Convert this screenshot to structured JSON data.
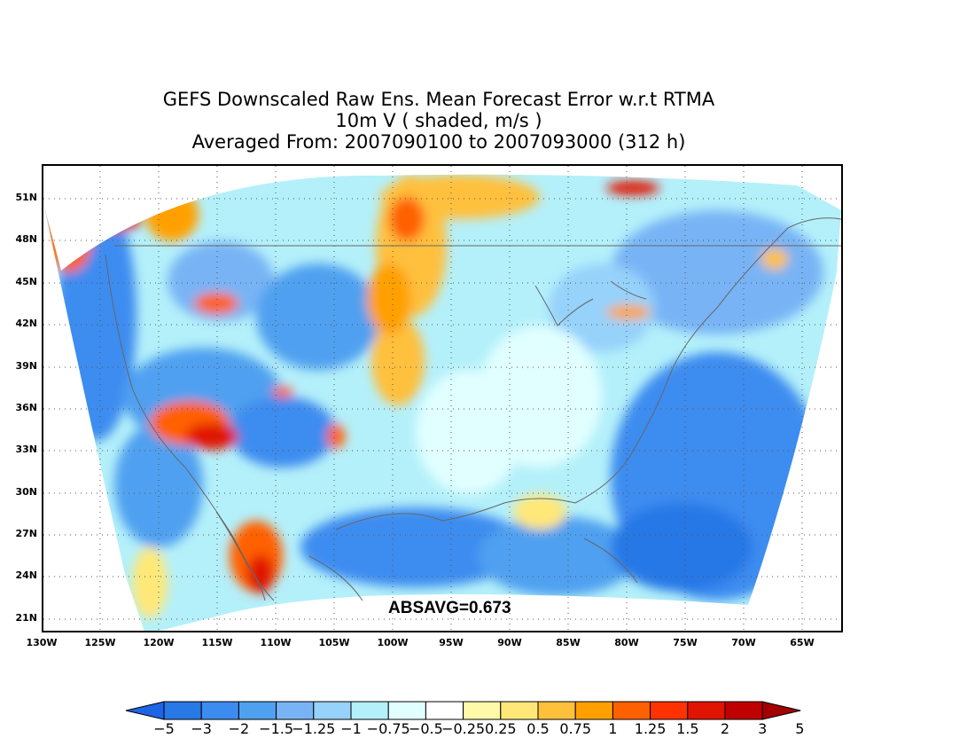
{
  "title": {
    "line1": "GEFS Downscaled Raw Ens. Mean Forecast Error w.r.t RTMA",
    "line2": "10m V ( shaded, m/s )",
    "line3": "Averaged From: 2007090100 to 2007093000 (312 h)"
  },
  "stat": "ABSAVG=0.673",
  "lat_labels": [
    "51N",
    "48N",
    "45N",
    "42N",
    "39N",
    "36N",
    "33N",
    "30N",
    "27N",
    "24N",
    "21N"
  ],
  "lon_labels": [
    "130W",
    "125W",
    "120W",
    "115W",
    "110W",
    "105W",
    "100W",
    "95W",
    "90W",
    "85W",
    "80W",
    "75W",
    "70W",
    "65W"
  ],
  "colorbar": {
    "labels": [
      "−5",
      "−3",
      "−2",
      "−1.5",
      "−1.25",
      "−1",
      "−0.75",
      "−0.5",
      "−0.25",
      "0.25",
      "0.5",
      "0.75",
      "1",
      "1.25",
      "1.5",
      "2",
      "3",
      "5"
    ],
    "colors": [
      "#1e64e6",
      "#2878e6",
      "#3c8cf0",
      "#50a0f0",
      "#78b4f5",
      "#96d2fa",
      "#b4f0fa",
      "#e1ffff",
      "#ffffff",
      "#fffaaa",
      "#ffe878",
      "#ffc03c",
      "#ffa000",
      "#ff6000",
      "#ff3200",
      "#e11400",
      "#c00000",
      "#a50000"
    ]
  },
  "chart_data": {
    "type": "heatmap",
    "variable": "10m V",
    "units": "m/s",
    "lat_range": [
      "21N",
      "51N"
    ],
    "lon_range": [
      "130W",
      "65W"
    ],
    "contour_levels": [
      -5,
      -3,
      -2,
      -1.5,
      -1.25,
      -1,
      -0.75,
      -0.5,
      -0.25,
      0.25,
      0.5,
      0.75,
      1,
      1.25,
      1.5,
      2,
      3,
      5
    ],
    "grid": true
  }
}
